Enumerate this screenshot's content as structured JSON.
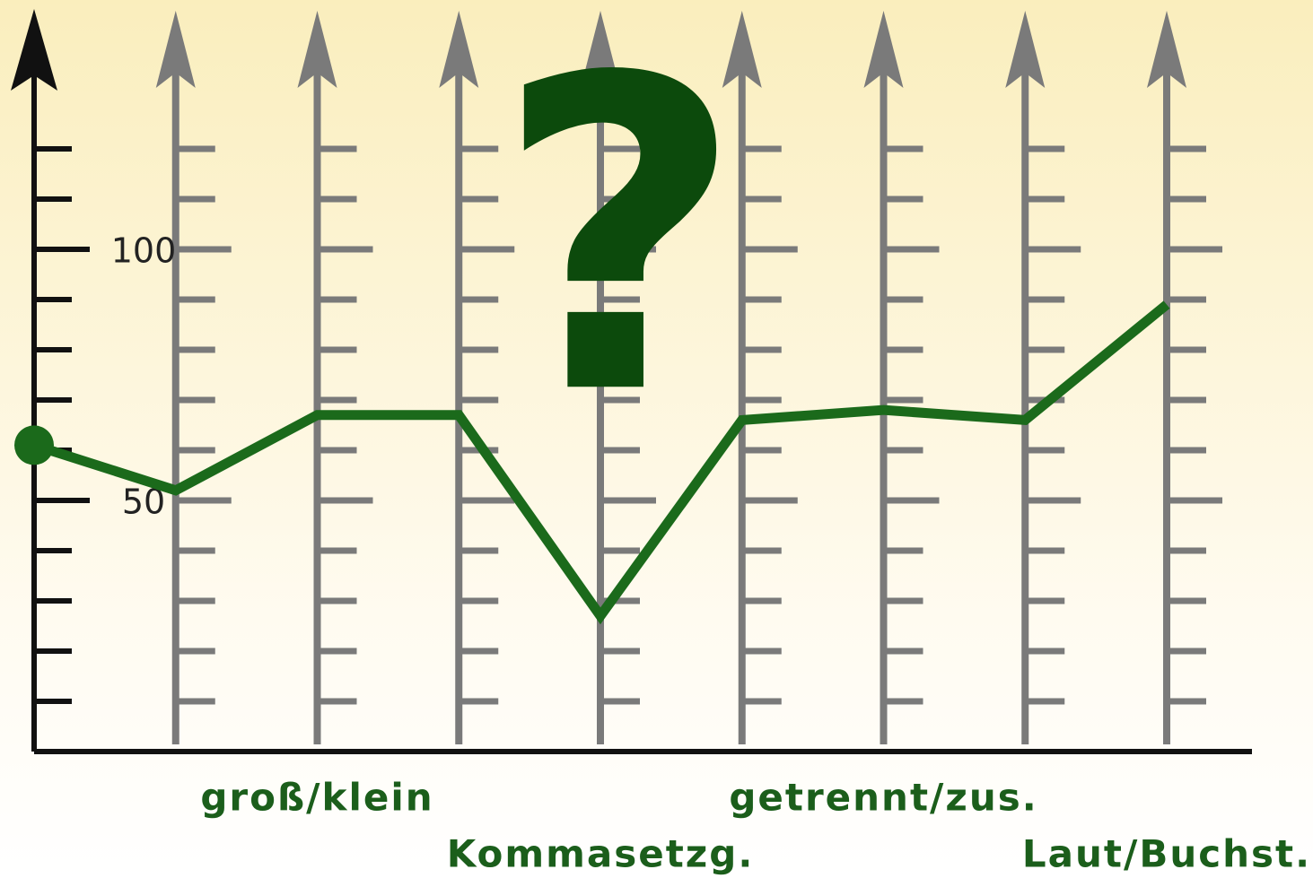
{
  "chart_data": {
    "type": "line",
    "annotation": "?",
    "categories": [
      null,
      null,
      "groß/klein",
      null,
      "Kommasetzg.",
      null,
      "getrennt/zus.",
      null,
      "Laut/Buchst."
    ],
    "series": [
      {
        "color": "#1b6a1b",
        "values": [
          61,
          52,
          67,
          67,
          27,
          66,
          68,
          66,
          89
        ]
      }
    ],
    "ylim": [
      0,
      145
    ],
    "yticks": [
      50,
      100
    ],
    "minor_yticks": [
      10,
      20,
      30,
      40,
      50,
      60,
      70,
      80,
      90,
      100,
      110,
      120
    ]
  }
}
